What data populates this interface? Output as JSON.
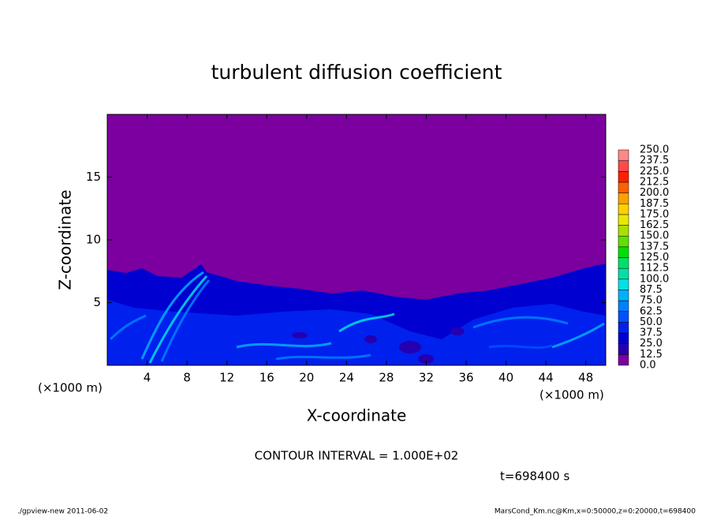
{
  "chart_data": {
    "type": "contour",
    "title": "turbulent diffusion coefficient",
    "x_label": "X-coordinate",
    "y_label": "Z-coordinate",
    "x_unit": "(×1000 m)",
    "y_unit": "(×1000 m)",
    "xlim": [
      0,
      50
    ],
    "xticks": [
      4,
      8,
      12,
      16,
      20,
      24,
      28,
      32,
      36,
      40,
      44,
      48
    ],
    "ylim": [
      0,
      20
    ],
    "yticks": [
      5,
      10,
      15
    ],
    "levels": [
      {
        "value": 0,
        "label": "0.0"
      },
      {
        "value": 12.5,
        "label": "12.5"
      },
      {
        "value": 25,
        "label": "25.0"
      },
      {
        "value": 37.5,
        "label": "37.5"
      },
      {
        "value": 50,
        "label": "50.0"
      },
      {
        "value": 62.5,
        "label": "62.5"
      },
      {
        "value": 75,
        "label": "75.0"
      },
      {
        "value": 87.5,
        "label": "87.5"
      },
      {
        "value": 100,
        "label": "100.0"
      },
      {
        "value": 112.5,
        "label": "112.5"
      },
      {
        "value": 125,
        "label": "125.0"
      },
      {
        "value": 137.5,
        "label": "137.5"
      },
      {
        "value": 150,
        "label": "150.0"
      },
      {
        "value": 162.5,
        "label": "162.5"
      },
      {
        "value": 175,
        "label": "175.0"
      },
      {
        "value": 187.5,
        "label": "187.5"
      },
      {
        "value": 200,
        "label": "200.0"
      },
      {
        "value": 212.5,
        "label": "212.5"
      },
      {
        "value": 225,
        "label": "225.0"
      },
      {
        "value": 237.5,
        "label": "237.5"
      },
      {
        "value": 250,
        "label": "250.0"
      }
    ],
    "level_colors": [
      "#7b009f",
      "#2400b0",
      "#0000d0",
      "#0020ee",
      "#0050ff",
      "#0080ff",
      "#00b0ff",
      "#00e0e8",
      "#00e0a8",
      "#00e068",
      "#00e000",
      "#60e000",
      "#a8e000",
      "#e8e800",
      "#ffd000",
      "#ffa000",
      "#ff6000",
      "#ff2000",
      "#ff4848",
      "#ff8888"
    ],
    "contour_interval": "CONTOUR INTERVAL = 1.000E+02",
    "time_label": "t=698400 s",
    "footer_left": "./gpview-new   2011-06-02",
    "footer_right": "MarsCond_Km.nc@Km,x=0:50000,z=0:20000,t=698400"
  }
}
